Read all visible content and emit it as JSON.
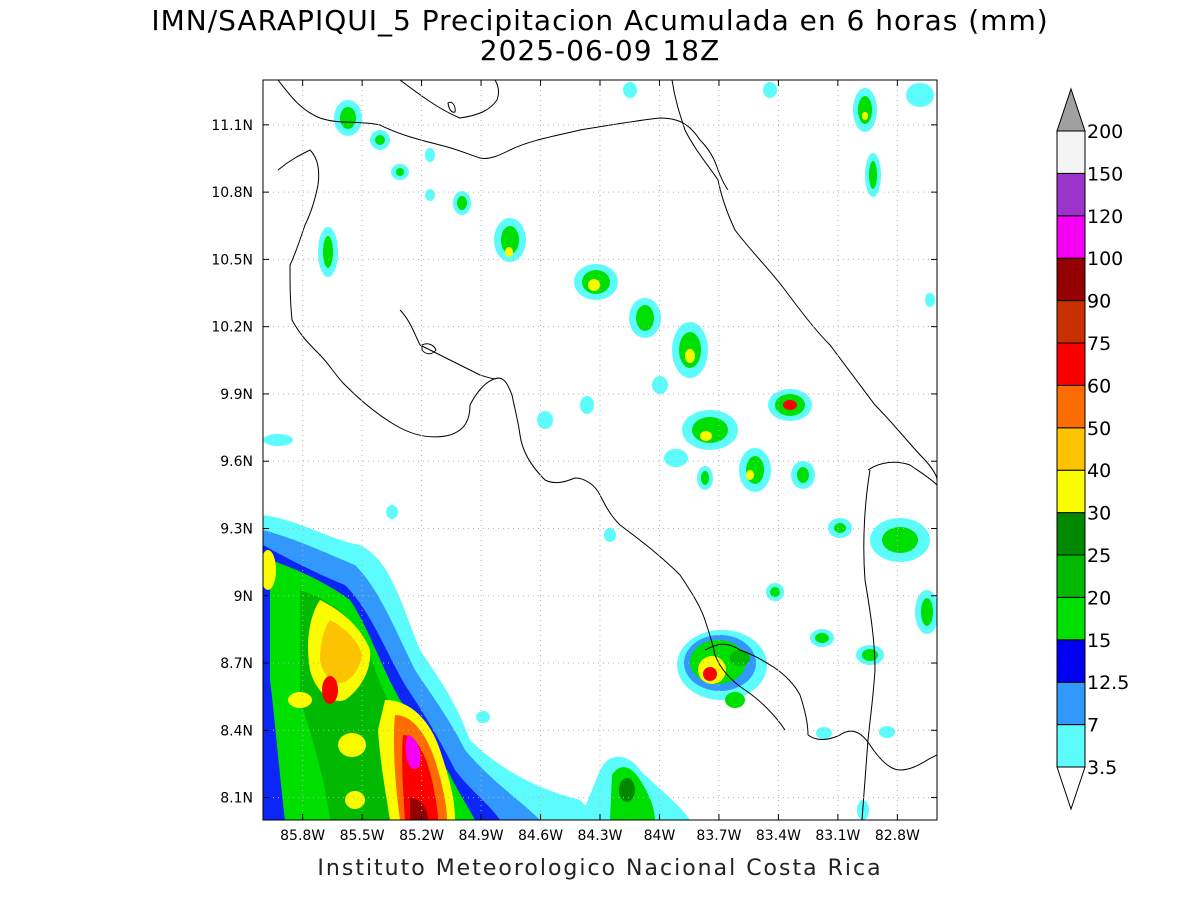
{
  "title": {
    "line1": "IMN/SARAPIQUI_5 Precipitacion Acumulada en 6 horas (mm)",
    "line2": "2025-06-09 18Z"
  },
  "credit": "Instituto Meteorologico Nacional Costa Rica",
  "map": {
    "lon_range": [
      -86.0,
      -82.6
    ],
    "lat_range": [
      8.0,
      11.3
    ],
    "lon_ticks": [
      {
        "value": -85.8,
        "label": "85.8W"
      },
      {
        "value": -85.5,
        "label": "85.5W"
      },
      {
        "value": -85.2,
        "label": "85.2W"
      },
      {
        "value": -84.9,
        "label": "84.9W"
      },
      {
        "value": -84.6,
        "label": "84.6W"
      },
      {
        "value": -84.3,
        "label": "84.3W"
      },
      {
        "value": -84.0,
        "label": "84W"
      },
      {
        "value": -83.7,
        "label": "83.7W"
      },
      {
        "value": -83.4,
        "label": "83.4W"
      },
      {
        "value": -83.1,
        "label": "83.1W"
      },
      {
        "value": -82.8,
        "label": "82.8W"
      }
    ],
    "lat_ticks": [
      {
        "value": 8.1,
        "label": "8.1N"
      },
      {
        "value": 8.4,
        "label": "8.4N"
      },
      {
        "value": 8.7,
        "label": "8.7N"
      },
      {
        "value": 9.0,
        "label": "9N"
      },
      {
        "value": 9.3,
        "label": "9.3N"
      },
      {
        "value": 9.6,
        "label": "9.6N"
      },
      {
        "value": 9.9,
        "label": "9.9N"
      },
      {
        "value": 10.2,
        "label": "10.2N"
      },
      {
        "value": 10.5,
        "label": "10.5N"
      },
      {
        "value": 10.8,
        "label": "10.8N"
      },
      {
        "value": 11.1,
        "label": "11.1N"
      }
    ],
    "grid": "dotted"
  },
  "legend": {
    "top_arrow_color": "#a0a0a0",
    "bottom_arrow_color": "#ffffff",
    "bins": [
      {
        "color": "#5dfcfc",
        "label": "3.5"
      },
      {
        "color": "#3398fb",
        "label": "7"
      },
      {
        "color": "#0000f5",
        "label": "12.5"
      },
      {
        "color": "#00e000",
        "label": "15"
      },
      {
        "color": "#00b900",
        "label": "20"
      },
      {
        "color": "#008800",
        "label": "25"
      },
      {
        "color": "#fcfc00",
        "label": "30"
      },
      {
        "color": "#fcc400",
        "label": "40"
      },
      {
        "color": "#fc6c00",
        "label": "50"
      },
      {
        "color": "#fc0000",
        "label": "60"
      },
      {
        "color": "#c83000",
        "label": "75"
      },
      {
        "color": "#940000",
        "label": "90"
      },
      {
        "color": "#f400f4",
        "label": "100"
      },
      {
        "color": "#9c34cc",
        "label": "120"
      },
      {
        "color": "#f4f4f4",
        "label": "150"
      }
    ],
    "top_label": "200"
  }
}
